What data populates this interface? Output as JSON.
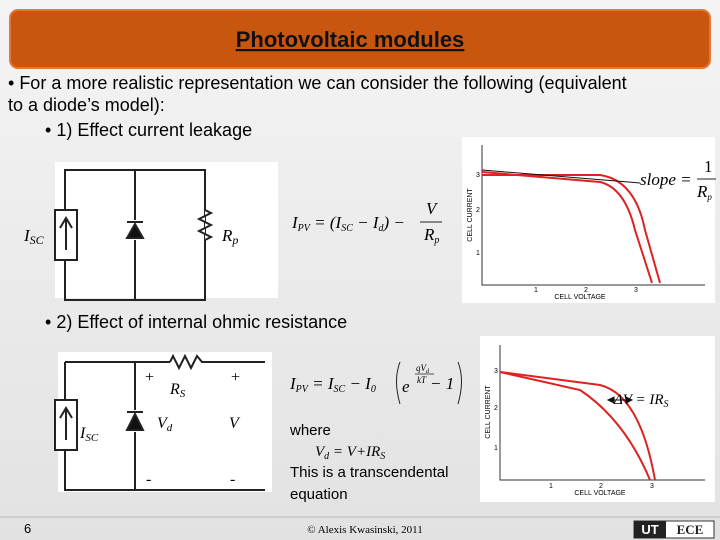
{
  "header": {
    "title": "Photovoltaic modules"
  },
  "bullets": {
    "main": [
      "For a more realistic representation we can consider the following (equivalent",
      "to a diode’s model):"
    ],
    "sub1": "1) Effect current leakage",
    "sub2": "2) Effect of internal ohmic resistance"
  },
  "circuit1": {
    "source": [
      "I",
      "SC"
    ],
    "resistor": [
      "R",
      "p"
    ]
  },
  "formula1": [
    "I",
    "PV",
    " = (I",
    "SC",
    " − I",
    "d",
    ") −",
    "V",
    "R",
    "p"
  ],
  "graph1": {
    "y_label": "CELL CURRENT",
    "x_label": "CELL VOLTAGE",
    "x_ticks": [
      "1",
      "2",
      "3"
    ],
    "y_ticks": [
      "1",
      "2",
      "3"
    ],
    "annotation": [
      "slope =",
      "1",
      "R",
      "p"
    ]
  },
  "circuit2": {
    "plus_left": "+",
    "plus_right": "+",
    "resistor": [
      "R",
      "S"
    ],
    "source": [
      "I",
      "SC"
    ],
    "diode": [
      "V",
      "d"
    ],
    "voltage": "V",
    "minus_left": "-",
    "minus_right": "-"
  },
  "formula2": [
    "I",
    "PV",
    " = I",
    "SC",
    " − I",
    "0",
    "e",
    "qV",
    "d",
    "kT",
    " − 1"
  ],
  "where": {
    "label": "where",
    "equation": [
      "V",
      "d",
      " = V+IR",
      "S"
    ],
    "note": [
      "This is a transcendental",
      "equation"
    ]
  },
  "graph2": {
    "y_label": "CELL CURRENT",
    "x_label": "CELL VOLTAGE",
    "x_ticks": [
      "1",
      "2",
      "3"
    ],
    "y_ticks": [
      "1",
      "2",
      "3"
    ],
    "annotation": [
      "ΔV = IR",
      "S"
    ]
  },
  "footer": {
    "page": "6",
    "copyright": "© Alexis Kwasinski, 2011",
    "logo": [
      "UT",
      "ECE"
    ]
  }
}
